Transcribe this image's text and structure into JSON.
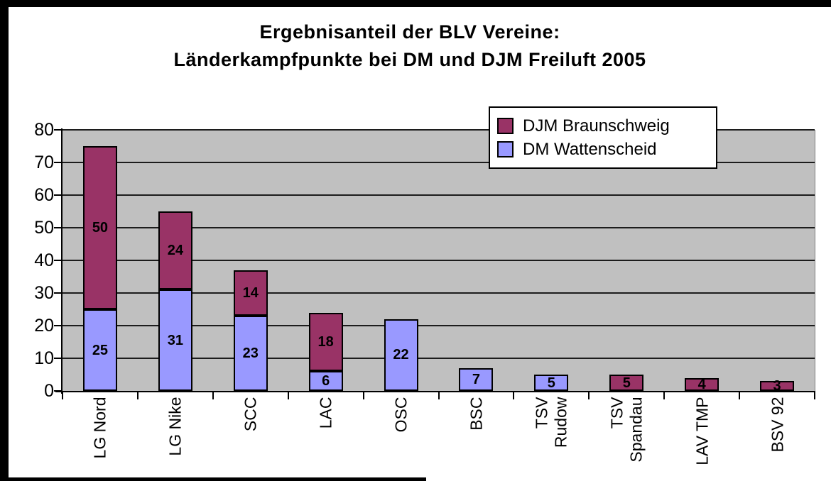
{
  "chart_data": {
    "type": "bar",
    "stacked": true,
    "title_lines": [
      "Ergebnisanteil der BLV Vereine:",
      "Länderkampfpunkte bei DM und DJM Freiluft 2005"
    ],
    "categories": [
      "LG Nord",
      "LG Nike",
      "SCC",
      "LAC",
      "OSC",
      "BSC",
      "TSV\nRudow",
      "TSV\nSpandau",
      "LAV TMP",
      "BSV 92"
    ],
    "series": [
      {
        "name": "DM Wattenscheid",
        "color": "#9999FF",
        "values": [
          25,
          31,
          23,
          6,
          22,
          7,
          5,
          0,
          0,
          0
        ]
      },
      {
        "name": "DJM Braunschweig",
        "color": "#993366",
        "values": [
          50,
          24,
          14,
          18,
          0,
          0,
          0,
          5,
          4,
          3
        ]
      }
    ],
    "totals": [
      75,
      55,
      37,
      24,
      22,
      7,
      5,
      5,
      4,
      3
    ],
    "ylim": [
      0,
      80
    ],
    "yticks": [
      0,
      10,
      20,
      30,
      40,
      50,
      60,
      70,
      80
    ],
    "grid": true,
    "plot_background": "#C0C0C0",
    "bar_value_labels_shown": true,
    "legend": {
      "position": "top-right",
      "items": [
        {
          "label": "DJM Braunschweig",
          "color": "#993366"
        },
        {
          "label": "DM Wattenscheid",
          "color": "#9999FF"
        }
      ]
    }
  }
}
